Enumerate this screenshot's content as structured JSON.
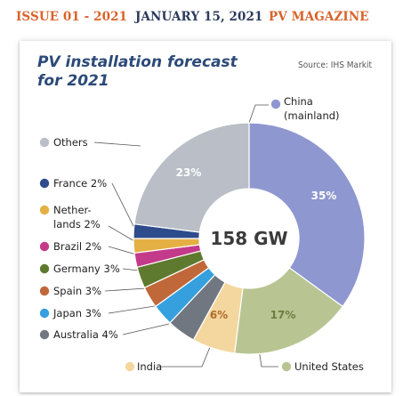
{
  "header": {
    "issue": "ISSUE 01 - 2021",
    "date": "JANUARY 15, 2021",
    "magazine": "PV MAGAZINE"
  },
  "chart_data": {
    "type": "pie",
    "title": "PV installation forecast for 2021",
    "title_lines": [
      "PV installation forecast",
      "for 2021"
    ],
    "source": "Source: IHS Markit",
    "center_label": "158 GW",
    "slices": [
      {
        "name": "China (mainland)",
        "label_lines": [
          "China",
          "(mainland)"
        ],
        "value": 35,
        "pct_label": "35%",
        "color": "#8e97d0"
      },
      {
        "name": "United States",
        "label_lines": [
          "United States"
        ],
        "value": 17,
        "pct_label": "17%",
        "color": "#b8c593"
      },
      {
        "name": "India",
        "label_lines": [
          "India"
        ],
        "value": 6,
        "pct_label": "6%",
        "color": "#f4d79e"
      },
      {
        "name": "Australia",
        "label_lines": [
          "Australia 4%"
        ],
        "value": 4,
        "pct_label": "",
        "color": "#717781"
      },
      {
        "name": "Japan",
        "label_lines": [
          "Japan 3%"
        ],
        "value": 3,
        "pct_label": "",
        "color": "#36a0de"
      },
      {
        "name": "Spain",
        "label_lines": [
          "Spain 3%"
        ],
        "value": 3,
        "pct_label": "",
        "color": "#c0683a"
      },
      {
        "name": "Germany",
        "label_lines": [
          "Germany 3%"
        ],
        "value": 3,
        "pct_label": "",
        "color": "#5e7a2e"
      },
      {
        "name": "Brazil",
        "label_lines": [
          "Brazil 2%"
        ],
        "value": 2,
        "pct_label": "",
        "color": "#c43a8a"
      },
      {
        "name": "Netherlands",
        "label_lines": [
          "Nether-",
          "lands 2%"
        ],
        "value": 2,
        "pct_label": "",
        "color": "#e5b043"
      },
      {
        "name": "France",
        "label_lines": [
          "France 2%"
        ],
        "value": 2,
        "pct_label": "",
        "color": "#2e4b8c"
      },
      {
        "name": "Others",
        "label_lines": [
          "Others"
        ],
        "value": 23,
        "pct_label": "23%",
        "color": "#b9bec7"
      }
    ]
  }
}
